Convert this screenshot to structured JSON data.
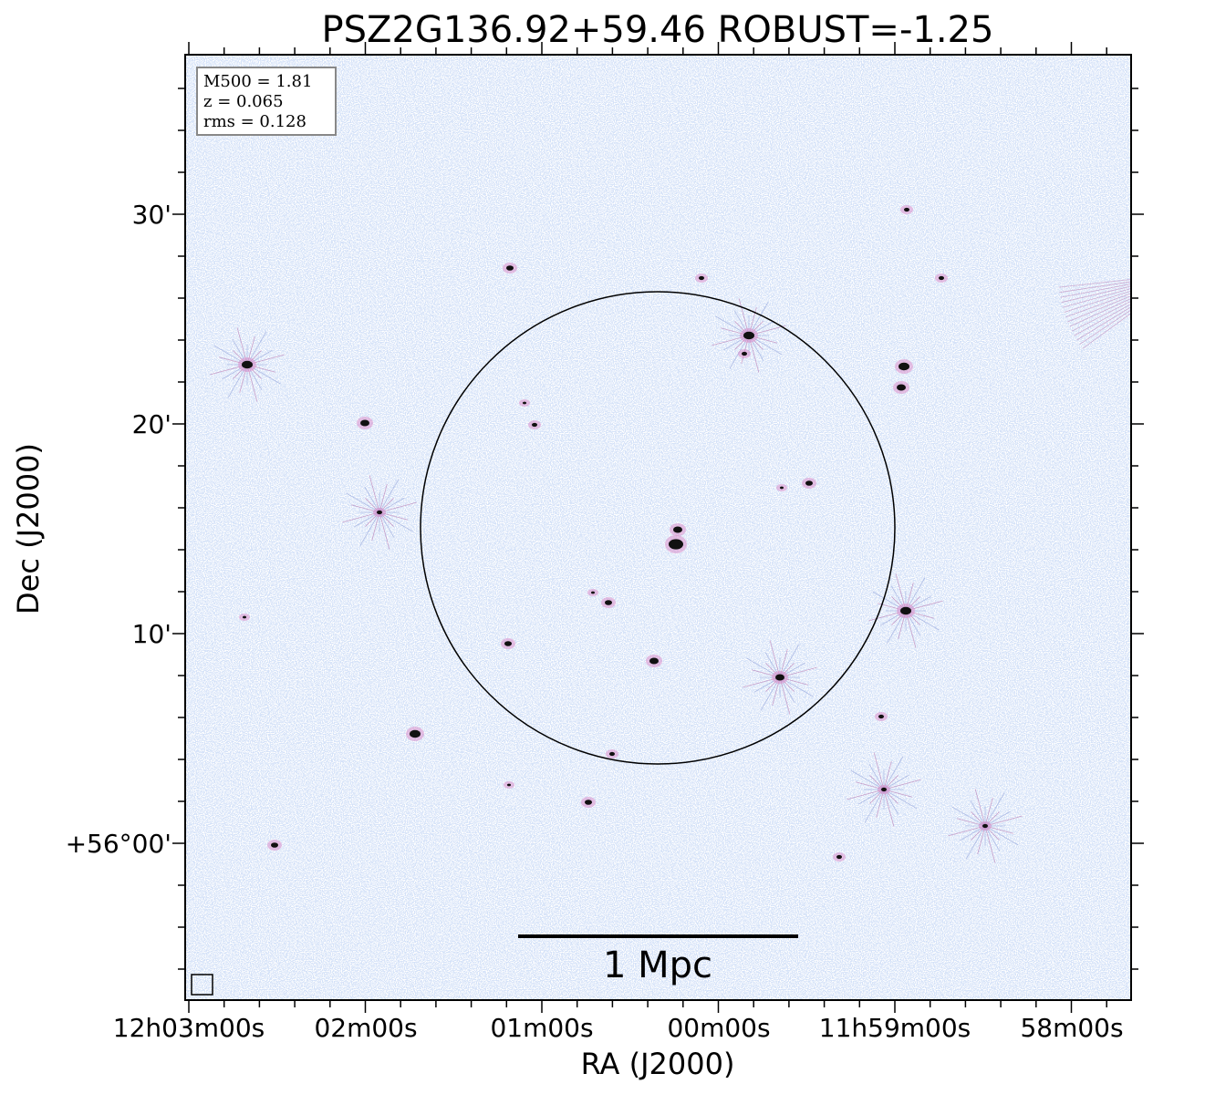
{
  "title": "PSZ2G136.92+59.46 ROBUST=-1.25",
  "info": [
    "M500 = 1.81",
    "z = 0.065",
    "rms = 0.128"
  ],
  "scale_bar": "1 Mpc",
  "x_axis": {
    "label": "RA (J2000)",
    "ticks": [
      "12h03m00s",
      "02m00s",
      "01m00s",
      "00m00s",
      "11h59m00s",
      "58m00s"
    ]
  },
  "y_axis": {
    "label": "Dec (J2000)",
    "ticks": [
      "30'",
      "20'",
      "10'",
      "+56°00'"
    ]
  }
}
